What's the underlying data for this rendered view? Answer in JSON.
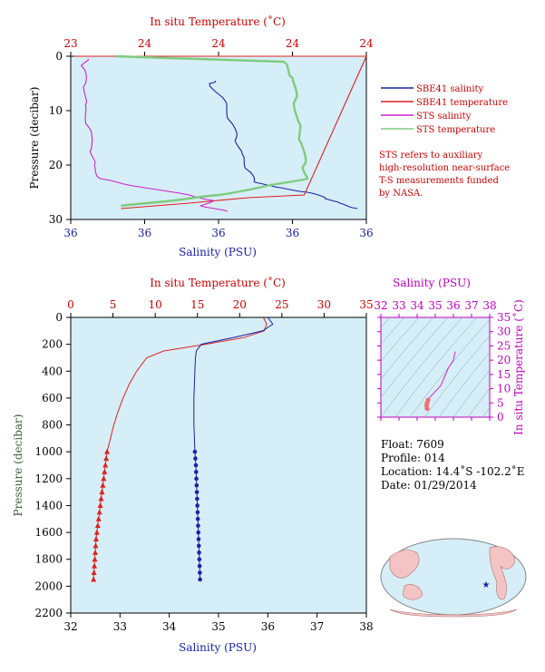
{
  "colors": {
    "panel_bg": "#d6eef7",
    "salinity": "#1a22a8",
    "temperature": "#e02020",
    "sts_salinity": "#d020d0",
    "sts_temperature": "#7ecb7e",
    "axis_temp": "#cc0000",
    "axis_sal": "#1a22a8",
    "axis_pres": "#3a5f3a",
    "ts_axis": "#c000c0"
  },
  "top_panel": {
    "temp_label": "In situ Temperature (˚C)",
    "sal_label": "Salinity (PSU)",
    "pres_label": "Pressure (decibar)",
    "temp_ticks": [
      "23",
      "24",
      "24",
      "24",
      "24"
    ],
    "sal_ticks": [
      "36",
      "36",
      "36",
      "36",
      "36"
    ],
    "pres_ticks": [
      "0",
      "10",
      "20",
      "30"
    ]
  },
  "legend": {
    "items": [
      {
        "label": "SBE41 salinity",
        "color": "#1a22a8"
      },
      {
        "label": "SBE41 temperature",
        "color": "#e02020"
      },
      {
        "label": "STS salinity",
        "color": "#d020d0"
      },
      {
        "label": "STS temperature",
        "color": "#7ecb7e"
      }
    ],
    "note": [
      "STS refers to auxiliary",
      "high-resolution near-surface",
      "T-S measurements funded",
      "by NASA."
    ]
  },
  "bottom_panel": {
    "temp_label": "In situ Temperature (˚C)",
    "sal_label": "Salinity (PSU)",
    "pres_label": "Pressure (decibar)",
    "temp_ticks": [
      "0",
      "5",
      "10",
      "15",
      "20",
      "25",
      "30",
      "35"
    ],
    "sal_ticks": [
      "32",
      "33",
      "34",
      "35",
      "36",
      "37",
      "38"
    ],
    "pres_ticks": [
      "0",
      "200",
      "400",
      "600",
      "800",
      "1000",
      "1200",
      "1400",
      "1600",
      "1800",
      "2000",
      "2200"
    ]
  },
  "ts_panel": {
    "sal_label": "Salinity (PSU)",
    "temp_label": "In situ Temperature (˚C)",
    "sal_ticks": [
      "32",
      "33",
      "34",
      "35",
      "36",
      "37",
      "38"
    ],
    "temp_ticks": [
      "0",
      "5",
      "10",
      "15",
      "20",
      "25",
      "30",
      "35"
    ]
  },
  "info": {
    "float": "Float:  7609",
    "profile": "Profile:  014",
    "location": "Location:  14.4˚S  -102.2˚E",
    "date": "Date:  01/29/2014"
  },
  "chart_data": [
    {
      "type": "line",
      "panel": "near-surface",
      "ylim": [
        0,
        30
      ],
      "y_axis_inverted": true,
      "series": [
        {
          "name": "SBE41 salinity",
          "pressure": [
            4.5,
            5,
            8,
            12,
            15,
            18,
            21,
            23,
            24,
            25,
            26,
            27,
            28
          ],
          "salinity_axis_fraction": [
            0.49,
            0.47,
            0.52,
            0.54,
            0.56,
            0.58,
            0.6,
            0.62,
            0.69,
            0.8,
            0.86,
            0.91,
            0.97
          ]
        },
        {
          "name": "SBE41 temperature",
          "pressure": [
            0,
            0,
            25.5,
            26,
            27,
            28
          ],
          "temperature_axis_fraction": [
            0.01,
            1.0,
            0.79,
            0.6,
            0.4,
            0.17
          ]
        },
        {
          "name": "STS salinity",
          "pressure": [
            0.5,
            2,
            5,
            9,
            13,
            17,
            20,
            22.5,
            23.5,
            25.5,
            26.5,
            27.5,
            28.5
          ],
          "salinity_axis_fraction": [
            0.06,
            0.04,
            0.05,
            0.05,
            0.06,
            0.07,
            0.08,
            0.1,
            0.18,
            0.4,
            0.48,
            0.44,
            0.53
          ]
        },
        {
          "name": "STS temperature",
          "pressure": [
            0,
            1,
            4,
            8,
            12,
            16,
            20,
            22.5,
            24,
            25.5,
            26.5,
            27.5
          ],
          "temperature_axis_fraction": [
            0.15,
            0.72,
            0.75,
            0.76,
            0.77,
            0.78,
            0.79,
            0.8,
            0.65,
            0.5,
            0.35,
            0.17
          ]
        }
      ]
    },
    {
      "type": "line",
      "panel": "full-profile",
      "ylim": [
        0,
        2200
      ],
      "y_axis_inverted": true,
      "temperature_xlim": [
        0,
        35
      ],
      "salinity_xlim": [
        32,
        38
      ],
      "series": [
        {
          "name": "Temperature",
          "pressure": [
            0,
            50,
            100,
            150,
            200,
            250,
            300,
            400,
            500,
            600,
            700,
            800,
            900,
            1000
          ],
          "values": [
            22.8,
            23.2,
            22.9,
            20.5,
            16.0,
            11.0,
            9.0,
            7.8,
            6.9,
            6.2,
            5.6,
            5.1,
            4.7,
            4.3
          ]
        },
        {
          "name": "Temperature (bottle)",
          "pressure": [
            1000,
            1050,
            1100,
            1150,
            1200,
            1250,
            1300,
            1350,
            1400,
            1450,
            1500,
            1550,
            1600,
            1650,
            1700,
            1750,
            1800,
            1850,
            1900,
            1950
          ],
          "values": [
            4.3,
            4.2,
            4.1,
            4.0,
            3.9,
            3.8,
            3.7,
            3.6,
            3.5,
            3.4,
            3.3,
            3.2,
            3.1,
            3.0,
            2.95,
            2.9,
            2.85,
            2.8,
            2.75,
            2.7
          ]
        },
        {
          "name": "Salinity",
          "pressure": [
            0,
            50,
            100,
            150,
            200,
            250,
            300,
            400,
            500,
            600,
            700,
            800,
            900,
            1000
          ],
          "values": [
            36.0,
            36.1,
            35.9,
            35.3,
            34.65,
            34.55,
            34.53,
            34.52,
            34.51,
            34.5,
            34.5,
            34.5,
            34.51,
            34.52
          ]
        },
        {
          "name": "Salinity (bottle)",
          "pressure": [
            1000,
            1050,
            1100,
            1150,
            1200,
            1250,
            1300,
            1350,
            1400,
            1450,
            1500,
            1550,
            1600,
            1650,
            1700,
            1750,
            1800,
            1850,
            1900,
            1950
          ],
          "values": [
            34.52,
            34.53,
            34.54,
            34.545,
            34.55,
            34.555,
            34.56,
            34.565,
            34.57,
            34.575,
            34.58,
            34.585,
            34.59,
            34.595,
            34.6,
            34.605,
            34.61,
            34.615,
            34.62,
            34.625
          ]
        }
      ]
    },
    {
      "type": "scatter",
      "panel": "T-S diagram",
      "xlim": [
        32,
        38
      ],
      "ylim": [
        0,
        35
      ],
      "series": [
        {
          "name": "T-S",
          "salinity": [
            34.55,
            34.52,
            34.55,
            34.6,
            34.7,
            35.0,
            35.3,
            35.5,
            35.7,
            36.0,
            36.1
          ],
          "temperature": [
            3,
            4,
            5,
            6,
            7,
            9,
            11,
            14,
            17,
            20,
            23
          ]
        }
      ]
    }
  ]
}
